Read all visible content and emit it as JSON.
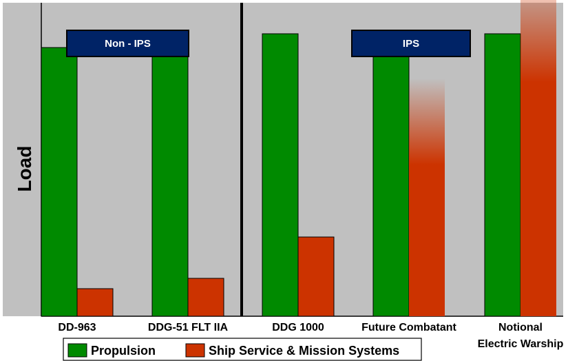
{
  "chart_data": {
    "type": "bar",
    "title": "",
    "xlabel": "",
    "ylabel": "Load",
    "ylim": [
      0,
      100
    ],
    "grid": false,
    "categories": [
      "DD-963",
      "DDG-51 FLT IIA",
      "DDG 1000",
      "Future Combatant",
      "Notional Electric Warship"
    ],
    "category_lines": [
      [
        "DD-963"
      ],
      [
        "DDG-51 FLT IIA"
      ],
      [
        "DDG 1000"
      ],
      [
        "Future Combatant"
      ],
      [
        "Notional",
        "Electric Warship"
      ]
    ],
    "series": [
      {
        "name": "Propulsion",
        "color": "#008a00",
        "values": [
          78,
          82,
          82,
          82,
          82
        ]
      },
      {
        "name": "Ship Service & Mission Systems",
        "color": "#cc3300",
        "values": [
          8,
          11,
          23,
          44,
          68
        ],
        "fade_extension": [
          0,
          0,
          0,
          25,
          34
        ]
      }
    ],
    "groups": [
      {
        "label": "Non - IPS",
        "categories": [
          0,
          1
        ]
      },
      {
        "label": "IPS",
        "categories": [
          2,
          3,
          4
        ]
      }
    ],
    "legend_position": "bottom-left",
    "colors": {
      "panel": "#c0c0c0",
      "group_label_bg": "#002366",
      "divider": "#000000"
    }
  }
}
